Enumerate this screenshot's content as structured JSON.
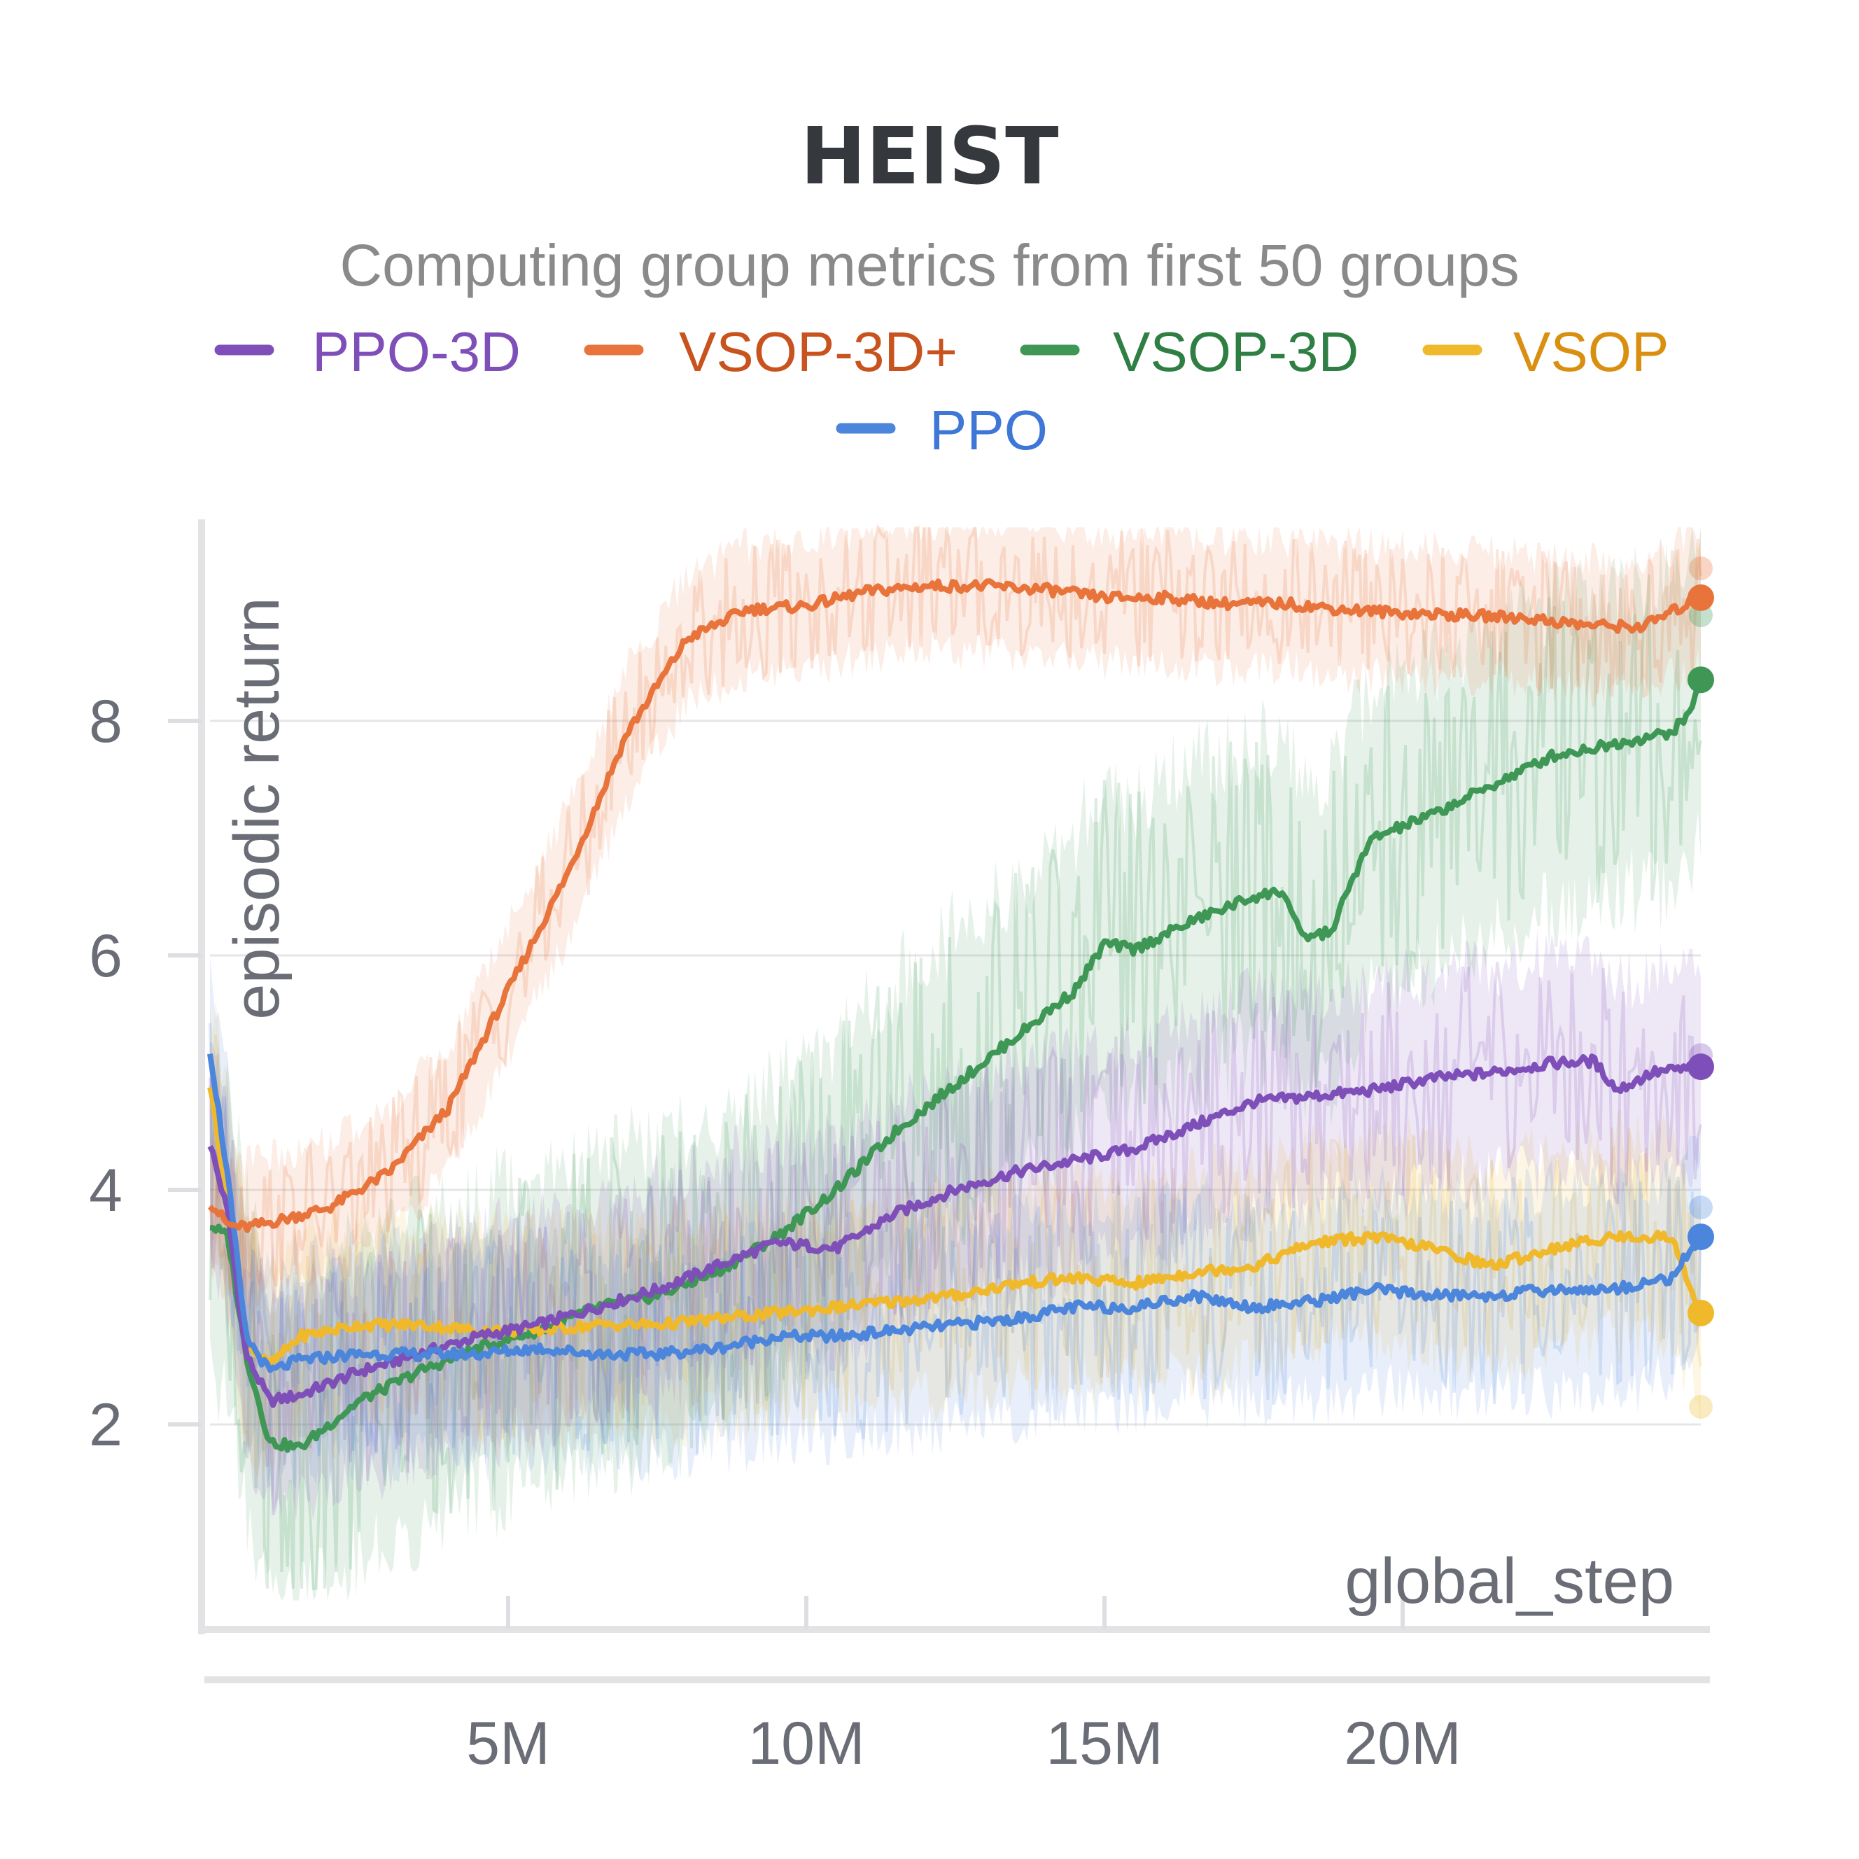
{
  "chart_data": {
    "type": "line",
    "title": "HEIST",
    "subtitle": "Computing group metrics from first 50 groups",
    "xlabel": "global_step",
    "ylabel": "episodic return",
    "xlim": [
      0,
      25000000
    ],
    "ylim": [
      0.3,
      9.7
    ],
    "x_ticks": [
      5000000,
      10000000,
      15000000,
      20000000
    ],
    "x_tick_labels": [
      "5M",
      "10M",
      "15M",
      "20M"
    ],
    "y_ticks": [
      2,
      4,
      6,
      8
    ],
    "y_tick_labels": [
      "2",
      "4",
      "6",
      "8"
    ],
    "grid": true,
    "legend_position": "top",
    "series": [
      {
        "name": "PPO-3D",
        "color": "#7e4fb8",
        "text_color": "#7e4fb8",
        "x": [
          0,
          0.3,
          0.6,
          1.0,
          1.5,
          2.5,
          3.5,
          4.5,
          5.5,
          6.5,
          7.5,
          8.5,
          9.5,
          10.5,
          11.5,
          12.5,
          13.5,
          14.5,
          15.5,
          16.5,
          17.5,
          18.5,
          19.5,
          20.5,
          21.5,
          22.5,
          23.2,
          23.6,
          24.2,
          25.0
        ],
        "values": [
          4.4,
          3.8,
          2.6,
          2.2,
          2.25,
          2.45,
          2.6,
          2.75,
          2.85,
          3.0,
          3.15,
          3.35,
          3.55,
          3.5,
          3.8,
          4.0,
          4.15,
          4.25,
          4.35,
          4.55,
          4.75,
          4.8,
          4.85,
          4.95,
          5.0,
          5.08,
          5.1,
          4.85,
          5.0,
          5.05
        ],
        "band": 0.9,
        "end_faint": 5.15
      },
      {
        "name": "VSOP-3D+",
        "color": "#e8743c",
        "text_color": "#c8531e",
        "x": [
          0,
          0.3,
          0.6,
          1.0,
          2.0,
          3.0,
          4.0,
          5.0,
          6.0,
          7.0,
          8.0,
          9.0,
          10.0,
          11.0,
          12.0,
          13.0,
          14.0,
          15.0,
          16.0,
          17.0,
          18.0,
          19.0,
          20.0,
          21.0,
          22.0,
          23.0,
          24.0,
          25.0
        ],
        "values": [
          3.9,
          3.7,
          3.68,
          3.72,
          3.85,
          4.15,
          4.7,
          5.7,
          6.7,
          7.9,
          8.7,
          8.95,
          8.98,
          9.1,
          9.15,
          9.15,
          9.12,
          9.05,
          9.05,
          9.0,
          9.0,
          8.95,
          8.92,
          8.9,
          8.88,
          8.82,
          8.8,
          9.05
        ],
        "band": 0.55,
        "end_faint": 9.3
      },
      {
        "name": "VSOP-3D",
        "color": "#3f9756",
        "text_color": "#2f7f45",
        "x": [
          0,
          0.3,
          0.6,
          1.0,
          1.5,
          2.5,
          3.5,
          4.5,
          5.5,
          6.5,
          7.5,
          8.5,
          9.5,
          10.5,
          11.5,
          12.5,
          13.5,
          14.5,
          15.0,
          15.5,
          16.5,
          17.5,
          18.0,
          18.3,
          18.8,
          19.2,
          19.5,
          20.5,
          21.5,
          22.5,
          23.0,
          24.5,
          24.8,
          25.0
        ],
        "values": [
          3.7,
          3.6,
          2.6,
          1.85,
          1.8,
          2.2,
          2.45,
          2.65,
          2.8,
          3.0,
          3.1,
          3.3,
          3.6,
          4.0,
          4.5,
          4.9,
          5.3,
          5.7,
          6.1,
          6.05,
          6.3,
          6.5,
          6.55,
          6.15,
          6.2,
          6.7,
          7.0,
          7.2,
          7.45,
          7.7,
          7.75,
          7.9,
          8.05,
          8.35
        ],
        "band": 1.3,
        "end_faint": 8.9
      },
      {
        "name": "VSOP",
        "color": "#f0b92c",
        "text_color": "#d98f0f",
        "x": [
          0,
          0.3,
          0.6,
          1.0,
          1.5,
          2.5,
          3.5,
          4.5,
          5.5,
          6.5,
          7.5,
          8.5,
          9.5,
          10.5,
          11.5,
          12.5,
          13.5,
          14.5,
          15.5,
          16.5,
          17.5,
          18.5,
          19.5,
          20.5,
          21.5,
          22.5,
          23.5,
          24.5,
          25.0
        ],
        "values": [
          4.9,
          3.9,
          2.7,
          2.5,
          2.75,
          2.85,
          2.85,
          2.8,
          2.8,
          2.85,
          2.85,
          2.9,
          2.95,
          3.0,
          3.05,
          3.1,
          3.2,
          3.25,
          3.2,
          3.3,
          3.35,
          3.55,
          3.6,
          3.5,
          3.35,
          3.5,
          3.6,
          3.6,
          2.95
        ],
        "band": 0.85,
        "end_faint": 2.15
      },
      {
        "name": "PPO",
        "color": "#4b86dc",
        "text_color": "#3f77d6",
        "x": [
          0,
          0.3,
          0.6,
          1.0,
          1.5,
          2.5,
          3.5,
          4.5,
          5.5,
          6.5,
          7.5,
          8.5,
          9.5,
          10.5,
          11.5,
          12.5,
          13.5,
          14.5,
          15.5,
          16.5,
          17.5,
          18.5,
          19.5,
          20.5,
          21.5,
          22.5,
          23.5,
          24.5,
          25.0
        ],
        "values": [
          5.2,
          4.1,
          2.75,
          2.45,
          2.55,
          2.6,
          2.6,
          2.6,
          2.65,
          2.6,
          2.6,
          2.65,
          2.75,
          2.75,
          2.8,
          2.85,
          2.9,
          3.0,
          3.0,
          3.1,
          3.0,
          3.05,
          3.15,
          3.1,
          3.1,
          3.15,
          3.15,
          3.25,
          3.6
        ],
        "band": 0.85,
        "end_faint": 3.85
      }
    ]
  }
}
